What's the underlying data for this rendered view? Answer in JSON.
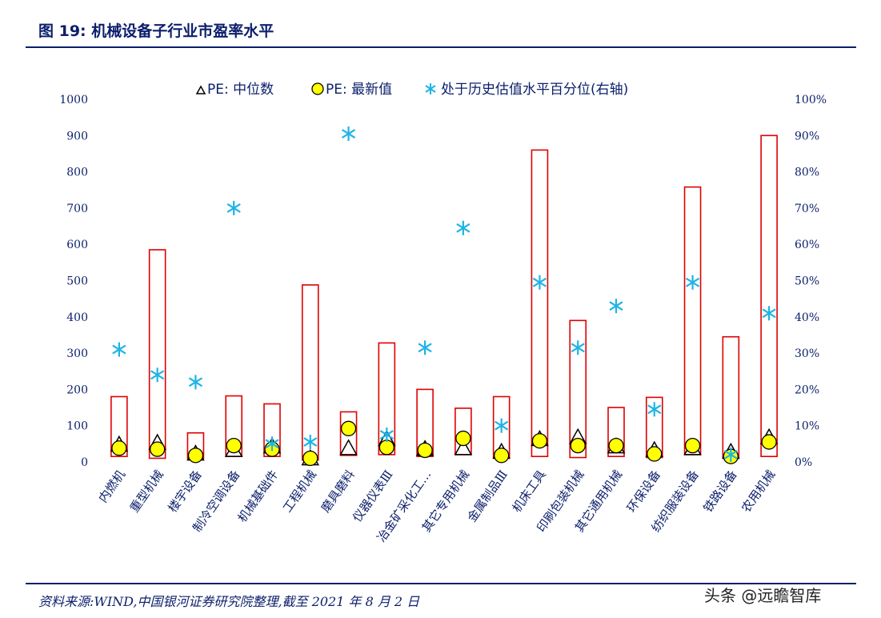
{
  "figure": {
    "title": "图 19:  机械设备子行业市盈率水平",
    "source": "资料来源:WIND,中国银河证券研究院整理,截至 2021 年 8 月 2 日",
    "watermark": "头条 @远瞻智库"
  },
  "colors": {
    "title": "#0b1f6b",
    "bar_outline": "#e00000",
    "median_marker": "#000000",
    "latest_marker": "#ffff00",
    "percentile_marker": "#1eb4e6",
    "axis_text": "#0b1f6b"
  },
  "chart_data": {
    "type": "bar",
    "categories": [
      "内燃机",
      "重型机械",
      "楼宇设备",
      "制冷空调设备",
      "机械基础件",
      "工程机械",
      "磨具磨料",
      "仪器仪表Ⅲ",
      "冶金矿采化工…",
      "其它专用机械",
      "金属制品Ⅲ",
      "机床工具",
      "印刷包装机械",
      "其它通用机械",
      "环保设备",
      "纺织服装设备",
      "铁路设备",
      "农用机械"
    ],
    "bar_ranges": [
      [
        15,
        180
      ],
      [
        10,
        585
      ],
      [
        10,
        80
      ],
      [
        15,
        182
      ],
      [
        15,
        160
      ],
      [
        5,
        488
      ],
      [
        18,
        138
      ],
      [
        20,
        328
      ],
      [
        15,
        200
      ],
      [
        20,
        148
      ],
      [
        10,
        180
      ],
      [
        15,
        860
      ],
      [
        12,
        390
      ],
      [
        15,
        150
      ],
      [
        12,
        178
      ],
      [
        20,
        758
      ],
      [
        10,
        345
      ],
      [
        15,
        900
      ]
    ],
    "series": [
      {
        "name": "PE: 中位数",
        "axis": "left",
        "marker": "triangle",
        "values": [
          50,
          55,
          25,
          35,
          45,
          12,
          40,
          65,
          38,
          40,
          30,
          65,
          70,
          45,
          35,
          40,
          30,
          70
        ]
      },
      {
        "name": "PE: 最新值",
        "axis": "left",
        "marker": "circle",
        "values": [
          38,
          35,
          18,
          45,
          35,
          10,
          92,
          40,
          32,
          65,
          18,
          58,
          45,
          45,
          22,
          45,
          15,
          55
        ]
      },
      {
        "name": "处于历史估值水平百分位(右轴)",
        "axis": "right",
        "marker": "asterisk",
        "values": [
          31,
          24,
          22,
          70,
          5,
          5.5,
          90.5,
          7.5,
          31.5,
          64.5,
          10,
          49.5,
          31.5,
          43,
          14.5,
          49.5,
          2,
          41
        ]
      }
    ],
    "y_left": {
      "ticks": [
        "0",
        "100",
        "200",
        "300",
        "400",
        "500",
        "600",
        "700",
        "800",
        "900",
        "1000"
      ],
      "ylim": [
        0,
        1000
      ]
    },
    "y_right": {
      "ticks": [
        "0%",
        "10%",
        "20%",
        "30%",
        "40%",
        "50%",
        "60%",
        "70%",
        "80%",
        "90%",
        "100%"
      ],
      "ylim": [
        0,
        100
      ]
    },
    "legend": {
      "position": "top-center"
    },
    "grid": false
  }
}
